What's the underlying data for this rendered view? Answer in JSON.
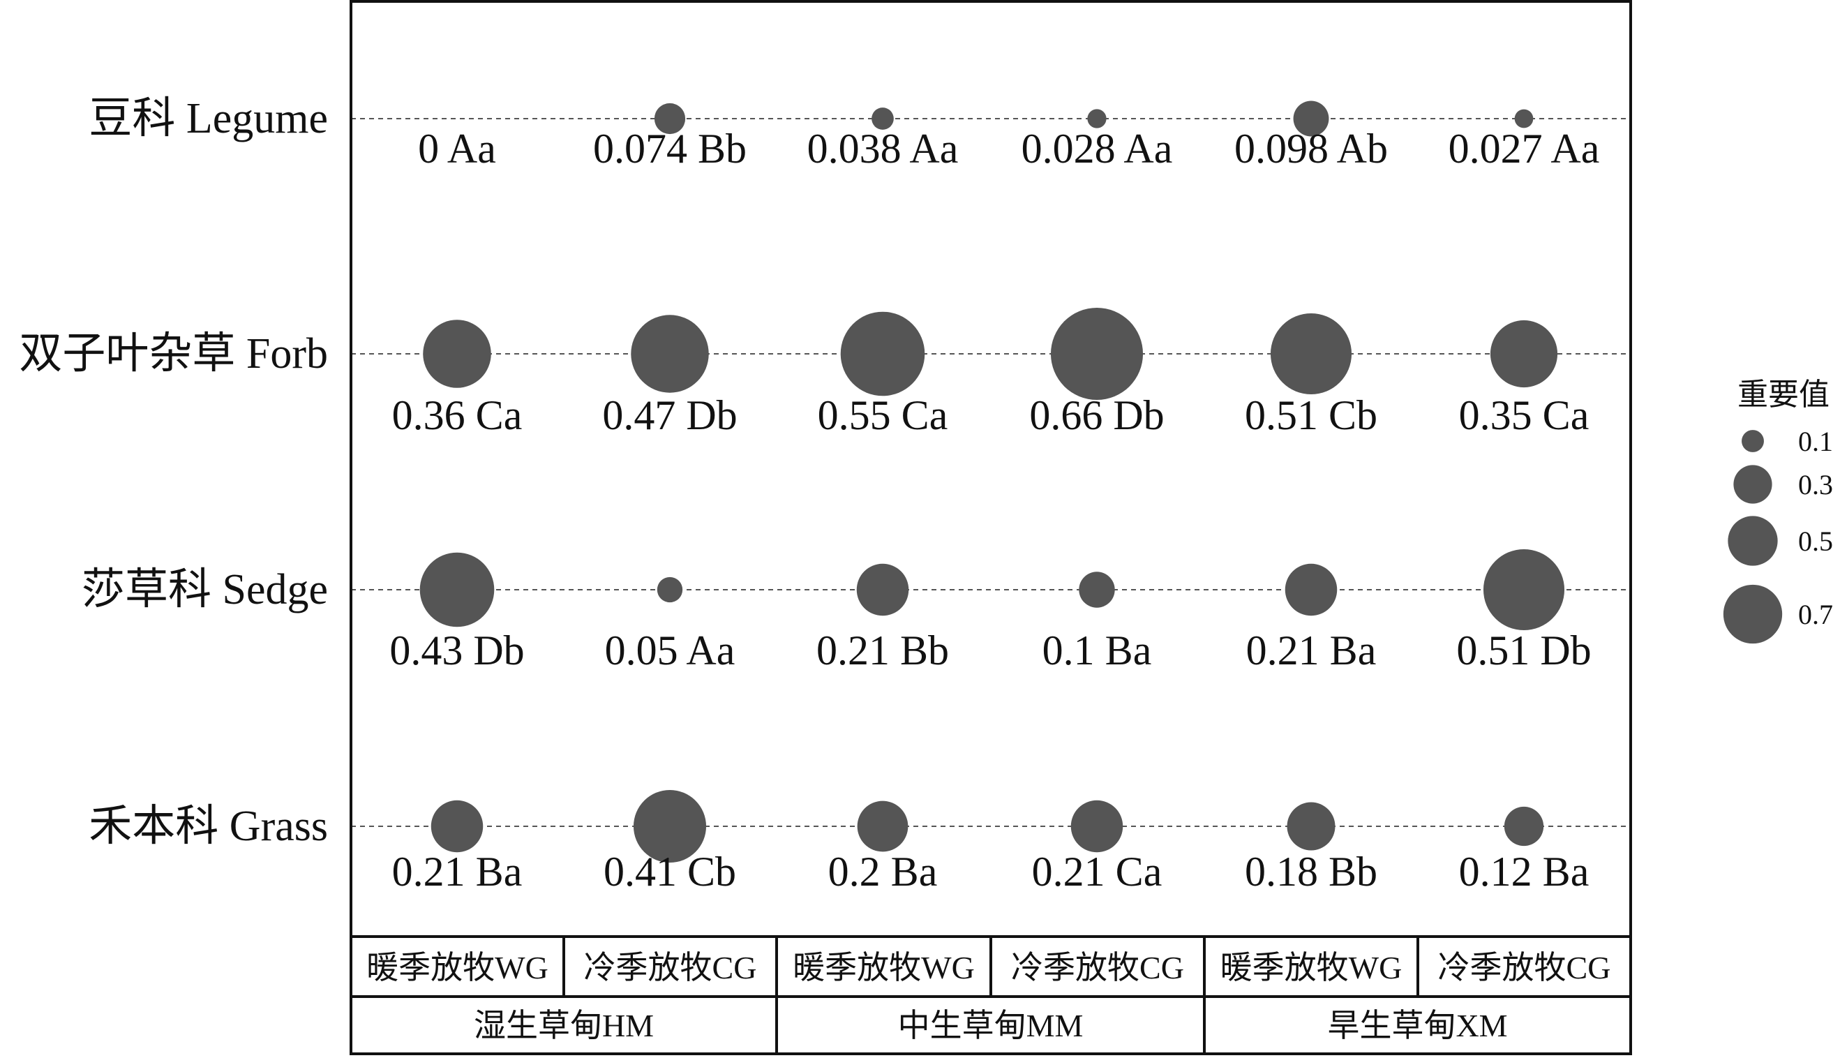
{
  "chart_data": {
    "type": "bubble",
    "rows": [
      {
        "label": "豆科 Legume"
      },
      {
        "label": "双子叶杂草 Forb"
      },
      {
        "label": "莎草科 Sedge"
      },
      {
        "label": "禾本科 Grass"
      }
    ],
    "columns": [
      {
        "label": "暖季放牧WG"
      },
      {
        "label": "冷季放牧CG"
      },
      {
        "label": "暖季放牧WG"
      },
      {
        "label": "冷季放牧CG"
      },
      {
        "label": "暖季放牧WG"
      },
      {
        "label": "冷季放牧CG"
      }
    ],
    "groups": [
      {
        "label": "湿生草甸HM"
      },
      {
        "label": "中生草甸MM"
      },
      {
        "label": "旱生草甸XM"
      }
    ],
    "values": [
      [
        0,
        0.074,
        0.038,
        0.028,
        0.098,
        0.027
      ],
      [
        0.36,
        0.47,
        0.55,
        0.66,
        0.51,
        0.35
      ],
      [
        0.43,
        0.05,
        0.21,
        0.1,
        0.21,
        0.51
      ],
      [
        0.21,
        0.41,
        0.2,
        0.21,
        0.18,
        0.12
      ]
    ],
    "labels": [
      [
        "0 Aa",
        "0.074 Bb",
        "0.038 Aa",
        "0.028 Aa",
        "0.098 Ab",
        "0.027 Aa"
      ],
      [
        "0.36 Ca",
        "0.47 Db",
        "0.55 Ca",
        "0.66 Db",
        "0.51 Cb",
        "0.35 Ca"
      ],
      [
        "0.43 Db",
        "0.05 Aa",
        "0.21 Bb",
        "0.1 Ba",
        "0.21 Ba",
        "0.51 Db"
      ],
      [
        "0.21 Ba",
        "0.41 Cb",
        "0.2 Ba",
        "0.21 Ca",
        "0.18 Bb",
        "0.12 Ba"
      ]
    ],
    "legend": {
      "title": "重要值",
      "position": "right",
      "sizes": [
        0.1,
        0.3,
        0.5,
        0.7
      ],
      "size_labels": [
        "0.1",
        "0.3",
        "0.5",
        "0.7"
      ]
    },
    "colors": {
      "bubble": "#555555",
      "frame": "#111111",
      "gridline": "#555555"
    }
  }
}
